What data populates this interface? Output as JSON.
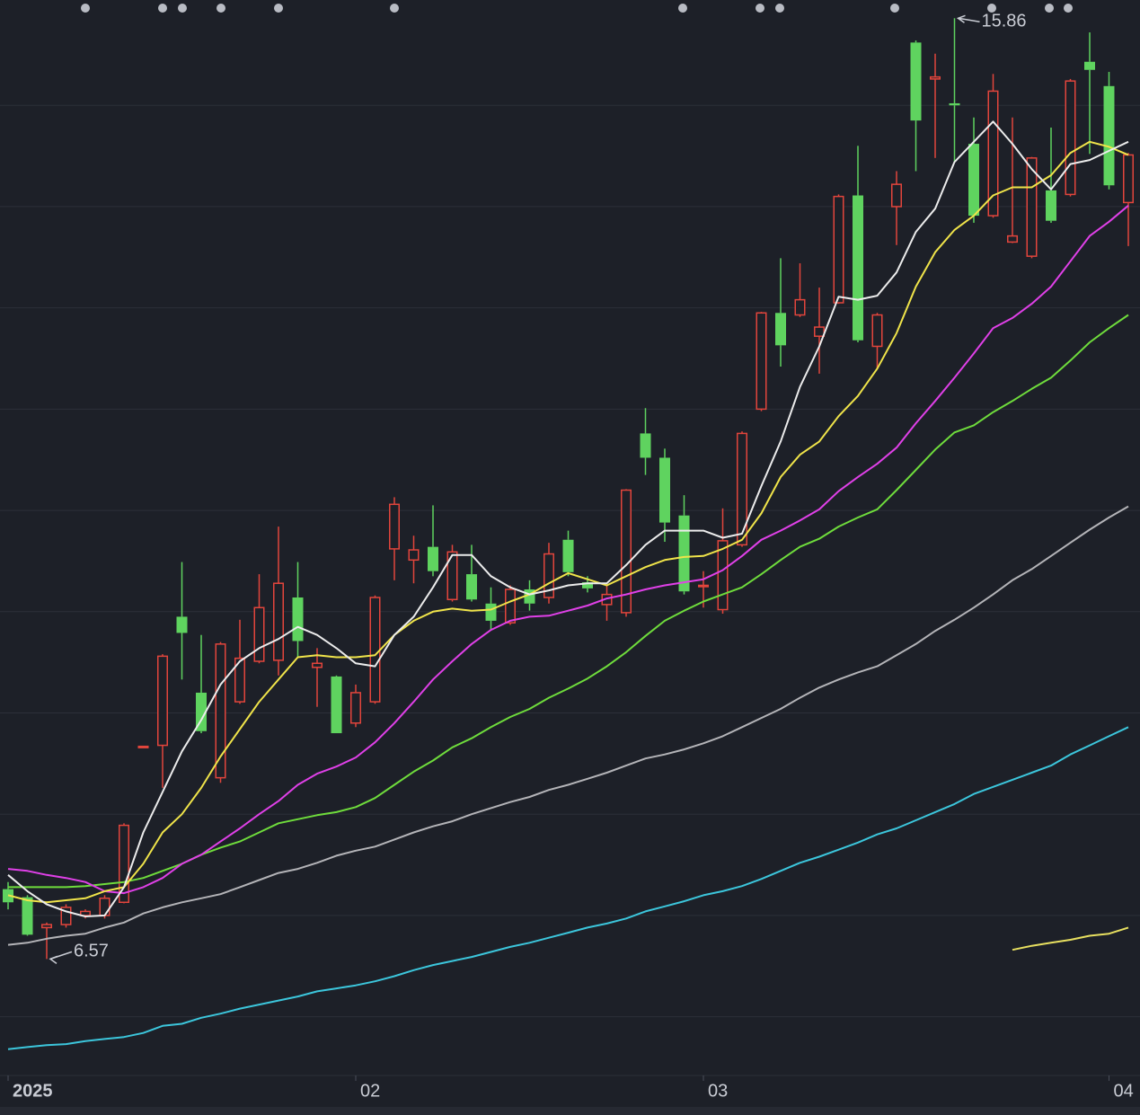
{
  "chart_data": {
    "type": "candlestick",
    "categories": [
      "2025",
      null,
      null,
      null,
      null,
      null,
      null,
      null,
      null,
      null,
      null,
      null,
      null,
      null,
      null,
      null,
      null,
      null,
      "02",
      null,
      null,
      null,
      null,
      null,
      null,
      null,
      null,
      null,
      null,
      null,
      null,
      null,
      null,
      null,
      null,
      null,
      "03",
      null,
      null,
      null,
      null,
      null,
      null,
      null,
      null,
      null,
      null,
      null,
      null,
      null,
      null,
      null,
      null,
      null,
      null,
      null,
      null,
      "04",
      null
    ],
    "open": [
      7.26,
      7.18,
      6.88,
      6.91,
      7.0,
      7.0,
      7.13,
      8.67,
      8.68,
      9.95,
      9.2,
      8.36,
      9.11,
      9.51,
      9.52,
      10.14,
      9.45,
      9.36,
      8.9,
      9.11,
      10.62,
      10.51,
      10.64,
      10.12,
      10.37,
      10.08,
      9.89,
      10.22,
      10.14,
      10.71,
      10.29,
      10.07,
      9.99,
      11.76,
      11.52,
      10.95,
      10.26,
      10.02,
      10.66,
      12.0,
      12.95,
      12.93,
      12.72,
      13.05,
      14.11,
      12.62,
      14.0,
      15.62,
      15.26,
      15.02,
      14.62,
      13.91,
      13.65,
      13.51,
      14.16,
      14.12,
      15.43,
      15.19,
      14.04
    ],
    "high": [
      7.33,
      7.2,
      6.93,
      7.11,
      7.06,
      7.2,
      7.91,
      8.67,
      9.58,
      10.49,
      9.77,
      9.7,
      9.92,
      10.37,
      10.84,
      10.49,
      9.64,
      9.37,
      9.28,
      10.16,
      11.13,
      10.75,
      11.05,
      10.66,
      10.66,
      10.24,
      10.26,
      10.31,
      10.68,
      10.8,
      10.35,
      10.26,
      11.21,
      12.01,
      11.61,
      11.15,
      10.4,
      11.02,
      11.78,
      12.96,
      13.49,
      13.44,
      13.2,
      14.12,
      14.6,
      12.95,
      14.35,
      15.64,
      15.51,
      15.86,
      14.88,
      15.31,
      14.88,
      14.49,
      14.78,
      15.26,
      15.72,
      15.33,
      14.53
    ],
    "low": [
      7.06,
      6.8,
      6.57,
      6.88,
      6.97,
      6.97,
      7.12,
      8.67,
      8.26,
      9.33,
      8.8,
      8.31,
      9.09,
      9.49,
      9.37,
      9.55,
      9.06,
      8.8,
      8.86,
      9.09,
      10.31,
      10.28,
      10.35,
      10.1,
      10.1,
      9.82,
      9.87,
      10.01,
      10.08,
      10.35,
      10.19,
      9.91,
      9.95,
      11.35,
      10.69,
      10.17,
      10.04,
      9.98,
      10.64,
      11.98,
      12.42,
      12.91,
      12.35,
      13.04,
      12.66,
      12.4,
      13.62,
      14.35,
      14.48,
      14.44,
      13.84,
      13.89,
      13.64,
      13.49,
      13.84,
      14.1,
      14.52,
      14.17,
      13.61
    ],
    "close": [
      7.13,
      6.81,
      6.91,
      7.08,
      7.04,
      7.17,
      7.89,
      8.67,
      9.56,
      9.79,
      8.82,
      9.68,
      9.54,
      10.04,
      10.28,
      9.71,
      9.49,
      8.8,
      9.2,
      10.14,
      11.06,
      10.61,
      10.4,
      10.59,
      10.12,
      9.91,
      10.22,
      10.08,
      10.57,
      10.39,
      10.23,
      10.17,
      11.2,
      11.52,
      10.88,
      10.2,
      10.26,
      10.7,
      11.76,
      12.95,
      12.63,
      13.08,
      12.81,
      14.1,
      12.68,
      12.93,
      14.22,
      14.85,
      15.28,
      15.0,
      13.91,
      15.14,
      13.71,
      14.48,
      13.86,
      15.24,
      15.35,
      14.21,
      14.51
    ],
    "up_color": "#e2453c",
    "down_color": "#5fd35f",
    "series": [
      {
        "color": "#3cc6dc",
        "values": [
          5.68,
          5.7,
          5.72,
          5.73,
          5.76,
          5.78,
          5.8,
          5.84,
          5.91,
          5.93,
          5.99,
          6.03,
          6.08,
          6.12,
          6.16,
          6.2,
          6.25,
          6.28,
          6.31,
          6.35,
          6.4,
          6.46,
          6.51,
          6.55,
          6.59,
          6.64,
          6.69,
          6.73,
          6.78,
          6.83,
          6.88,
          6.92,
          6.97,
          7.04,
          7.09,
          7.14,
          7.2,
          7.24,
          7.29,
          7.36,
          7.44,
          7.52,
          7.58,
          7.65,
          7.72,
          7.8,
          7.86,
          7.94,
          8.02,
          8.1,
          8.2,
          8.27,
          8.34,
          8.41,
          8.48,
          8.59,
          8.68,
          8.77,
          8.86
        ]
      },
      {
        "color": "#b4b4b8",
        "values": [
          6.71,
          6.73,
          6.77,
          6.8,
          6.82,
          6.88,
          6.93,
          7.02,
          7.08,
          7.13,
          7.17,
          7.21,
          7.28,
          7.35,
          7.42,
          7.46,
          7.52,
          7.59,
          7.64,
          7.68,
          7.75,
          7.82,
          7.88,
          7.93,
          8.0,
          8.06,
          8.12,
          8.17,
          8.24,
          8.29,
          8.35,
          8.41,
          8.48,
          8.55,
          8.59,
          8.64,
          8.7,
          8.77,
          8.86,
          8.95,
          9.04,
          9.15,
          9.25,
          9.33,
          9.4,
          9.46,
          9.57,
          9.68,
          9.81,
          9.92,
          10.04,
          10.17,
          10.31,
          10.42,
          10.55,
          10.68,
          10.81,
          10.93,
          11.04
        ]
      },
      {
        "color": "#6fdc3c",
        "values": [
          7.28,
          7.28,
          7.28,
          7.28,
          7.29,
          7.31,
          7.33,
          7.37,
          7.44,
          7.51,
          7.6,
          7.67,
          7.73,
          7.82,
          7.91,
          7.95,
          7.99,
          8.02,
          8.07,
          8.16,
          8.29,
          8.42,
          8.53,
          8.66,
          8.75,
          8.86,
          8.96,
          9.04,
          9.15,
          9.24,
          9.34,
          9.46,
          9.6,
          9.76,
          9.91,
          10.01,
          10.1,
          10.17,
          10.24,
          10.37,
          10.51,
          10.64,
          10.72,
          10.84,
          10.93,
          11.01,
          11.2,
          11.4,
          11.6,
          11.77,
          11.84,
          11.97,
          12.08,
          12.2,
          12.31,
          12.48,
          12.66,
          12.8,
          12.93
        ]
      },
      {
        "color": "#e040e8",
        "values": [
          7.46,
          7.44,
          7.4,
          7.37,
          7.33,
          7.24,
          7.22,
          7.28,
          7.37,
          7.51,
          7.6,
          7.73,
          7.86,
          8.0,
          8.13,
          8.29,
          8.4,
          8.47,
          8.56,
          8.71,
          8.9,
          9.11,
          9.33,
          9.51,
          9.68,
          9.82,
          9.91,
          9.95,
          9.96,
          10.01,
          10.06,
          10.13,
          10.17,
          10.22,
          10.26,
          10.29,
          10.32,
          10.41,
          10.55,
          10.71,
          10.8,
          10.9,
          11.01,
          11.19,
          11.33,
          11.46,
          11.62,
          11.86,
          12.08,
          12.31,
          12.55,
          12.8,
          12.9,
          13.04,
          13.21,
          13.46,
          13.71,
          13.85,
          14.01
        ]
      },
      {
        "color": "#f0e44a",
        "values": [
          7.2,
          7.15,
          7.13,
          7.15,
          7.17,
          7.24,
          7.28,
          7.51,
          7.82,
          8.0,
          8.26,
          8.57,
          8.84,
          9.11,
          9.33,
          9.55,
          9.57,
          9.55,
          9.55,
          9.57,
          9.77,
          9.91,
          10.0,
          10.03,
          10.01,
          10.02,
          10.1,
          10.17,
          10.28,
          10.38,
          10.32,
          10.26,
          10.35,
          10.44,
          10.51,
          10.54,
          10.55,
          10.62,
          10.71,
          10.97,
          11.33,
          11.55,
          11.68,
          11.93,
          12.13,
          12.4,
          12.75,
          13.21,
          13.55,
          13.77,
          13.91,
          14.11,
          14.19,
          14.19,
          14.31,
          14.53,
          14.64,
          14.59,
          14.51
        ]
      },
      {
        "color": "#ececec",
        "values": [
          7.4,
          7.24,
          7.11,
          7.04,
          6.99,
          7.0,
          7.28,
          7.82,
          8.22,
          8.62,
          8.93,
          9.28,
          9.51,
          9.64,
          9.73,
          9.85,
          9.77,
          9.64,
          9.49,
          9.46,
          9.77,
          9.95,
          10.24,
          10.56,
          10.56,
          10.35,
          10.24,
          10.17,
          10.21,
          10.26,
          10.28,
          10.28,
          10.46,
          10.66,
          10.8,
          10.8,
          10.8,
          10.73,
          10.77,
          11.24,
          11.68,
          12.22,
          12.62,
          13.11,
          13.08,
          13.12,
          13.35,
          13.75,
          13.98,
          14.44,
          14.64,
          14.84,
          14.62,
          14.37,
          14.17,
          14.42,
          14.46,
          14.55,
          14.64
        ]
      },
      {
        "color": "#e8e060",
        "values": [
          null,
          null,
          null,
          null,
          null,
          null,
          null,
          null,
          null,
          null,
          null,
          null,
          null,
          null,
          null,
          null,
          null,
          null,
          null,
          null,
          null,
          null,
          null,
          null,
          null,
          null,
          null,
          null,
          null,
          null,
          null,
          null,
          null,
          null,
          null,
          null,
          null,
          null,
          null,
          null,
          null,
          null,
          null,
          null,
          null,
          null,
          null,
          null,
          null,
          null,
          null,
          null,
          6.66,
          6.7,
          6.73,
          6.76,
          6.8,
          6.82,
          6.88
        ]
      }
    ],
    "ylim": [
      5.42,
      16.04
    ],
    "yticks": [
      6,
      7,
      8,
      9,
      10,
      11,
      12,
      13,
      14,
      15
    ],
    "grid": true
  }
}
